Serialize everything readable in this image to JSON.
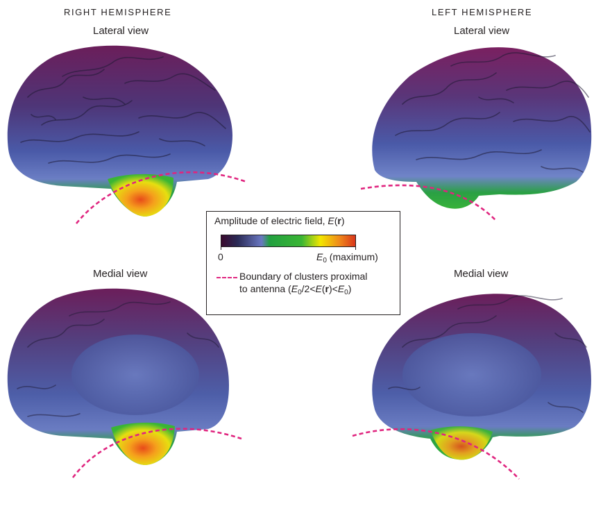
{
  "hemispheres": {
    "right": {
      "title": "RIGHT HEMISPHERE",
      "lateral_label": "Lateral view",
      "medial_label": "Medial view"
    },
    "left": {
      "title": "LEFT HEMISPHERE",
      "lateral_label": "Lateral view",
      "medial_label": "Medial view"
    }
  },
  "legend": {
    "title_prefix": "Amplitude of electric field, ",
    "title_var": "E",
    "title_open": "(",
    "title_arg": "r",
    "title_close": ")",
    "min_label": "0",
    "max_var": "E",
    "max_sub": "0",
    "max_suffix": " (maximum)",
    "boundary_line1": "Boundary of clusters proximal",
    "boundary_line2_prefix": "to antenna (",
    "boundary_e0": "E",
    "boundary_e0_sub": "0",
    "boundary_mid": "/2<",
    "boundary_e": "E",
    "boundary_r_open": "(",
    "boundary_r": "r",
    "boundary_r_close": ")<",
    "boundary_e0b": "E",
    "boundary_e0b_sub": "0",
    "boundary_end": ")",
    "colormap": [
      "#3a0a2e",
      "#2a2a55",
      "#6a78c2",
      "#22a040",
      "#3ab534",
      "#f2e600",
      "#f08a1a",
      "#d9361b"
    ]
  },
  "colors": {
    "boundary_line": "#e0257f",
    "cortex_top": "#6b1e5a",
    "cortex_mid": "#4a5aa8",
    "cortex_low": "#2a9a3e",
    "hotspot": "#f0a020"
  }
}
